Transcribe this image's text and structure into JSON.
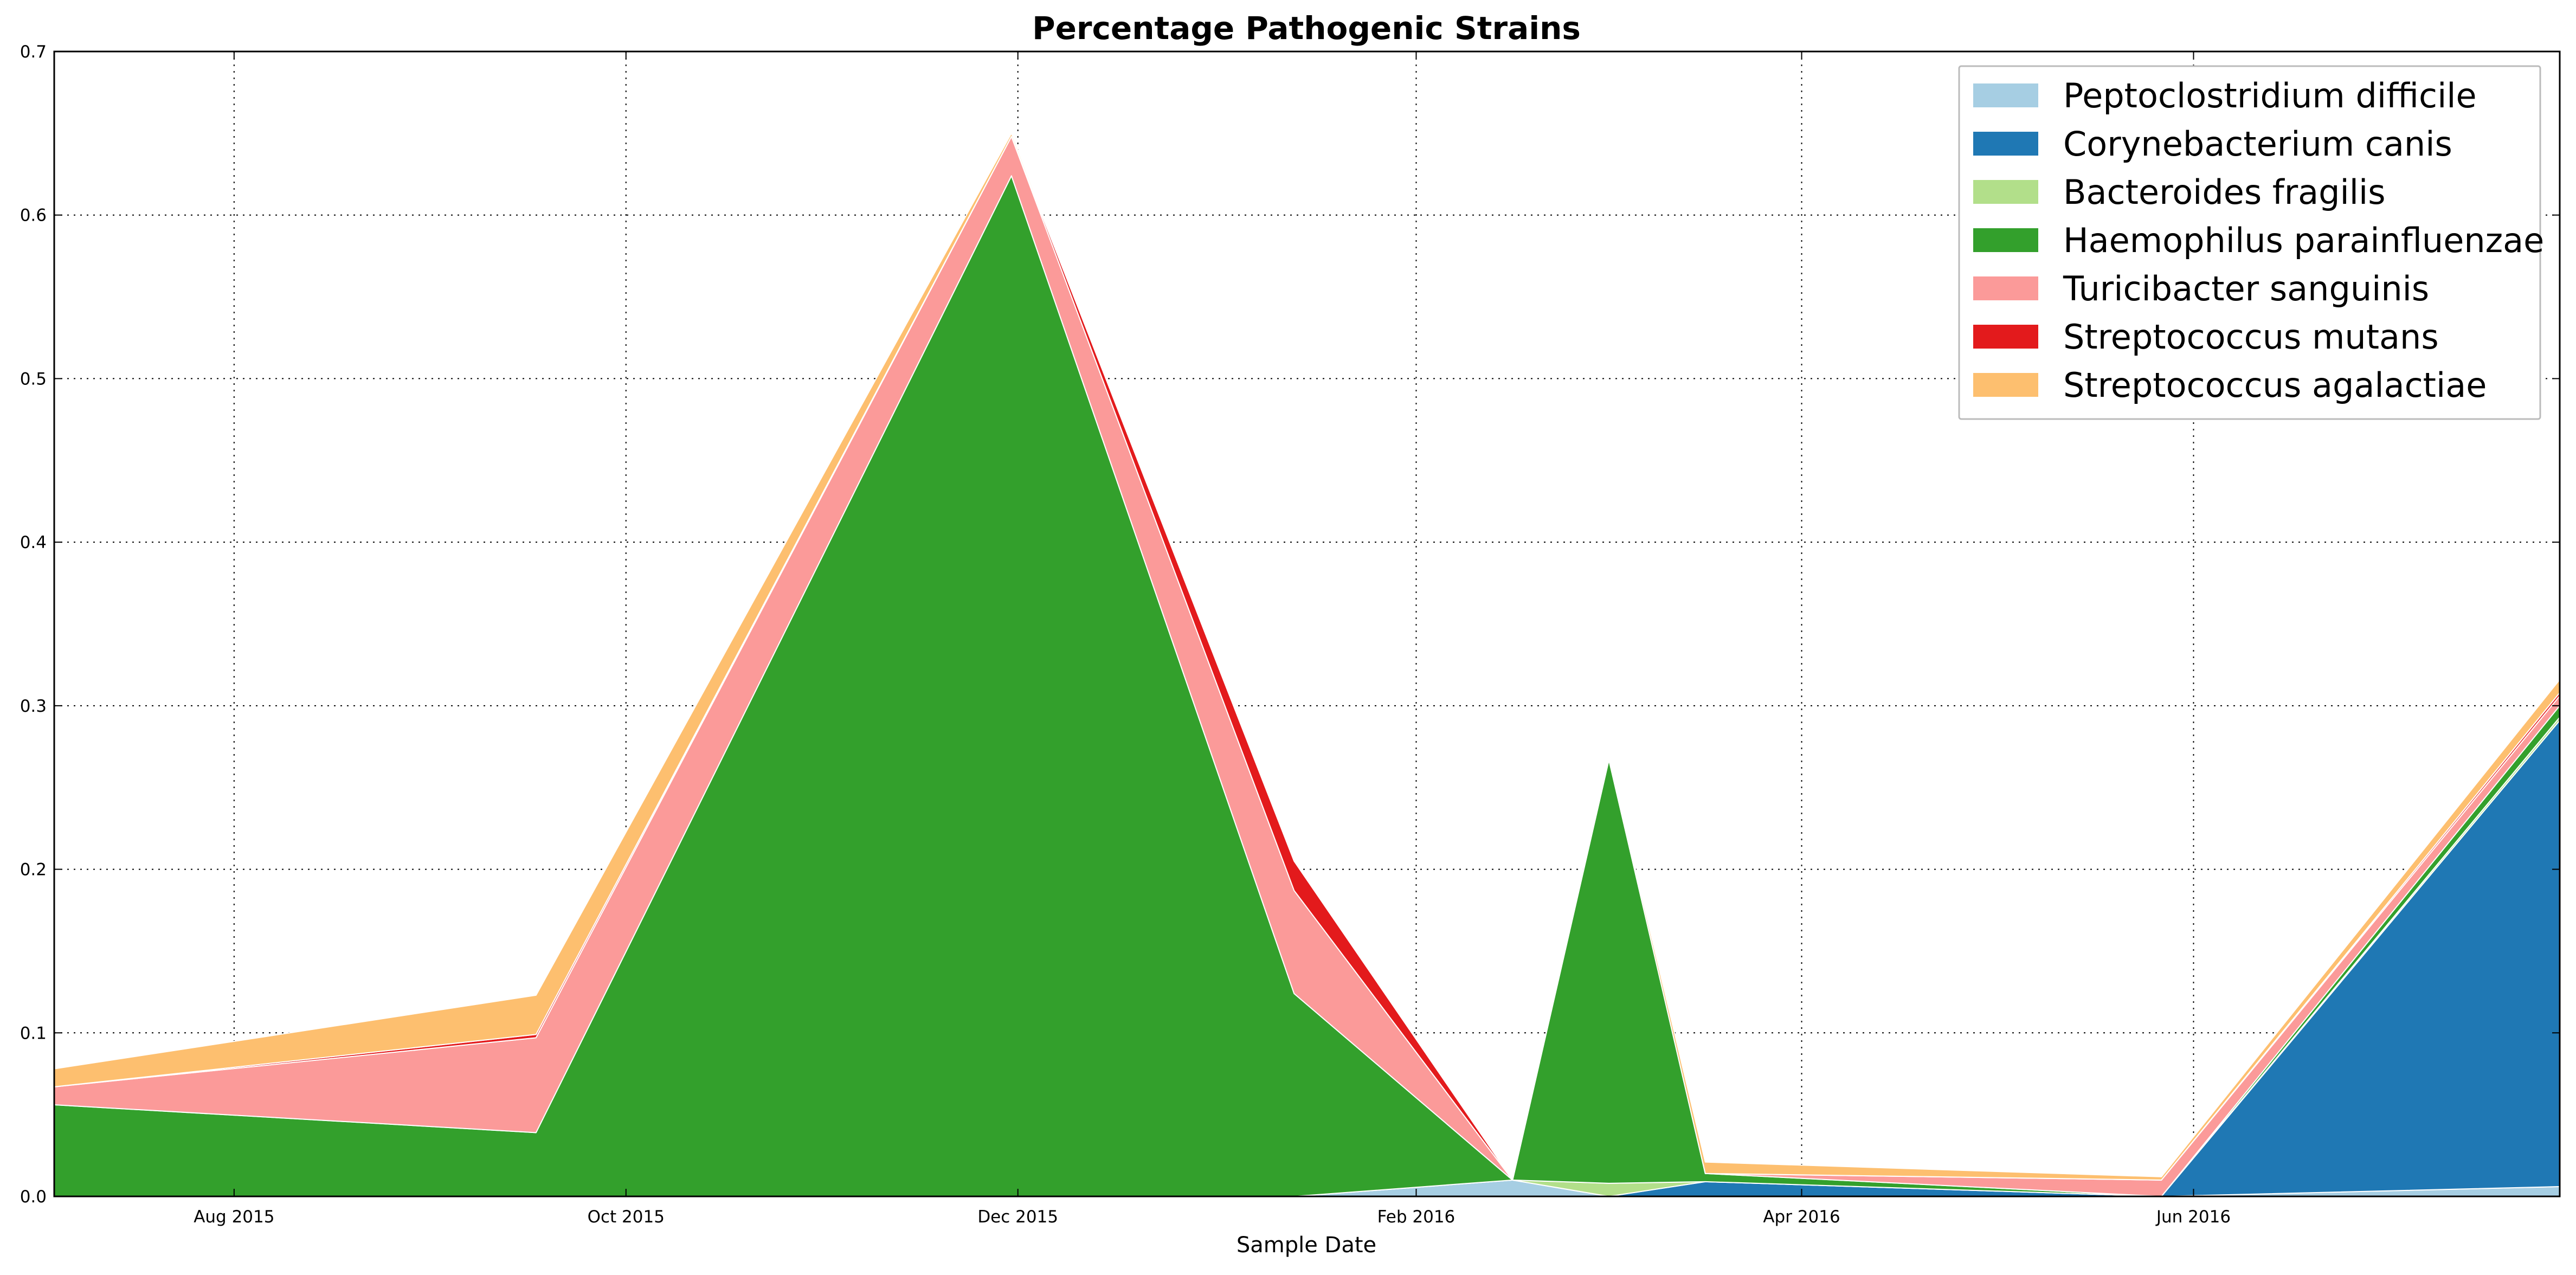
{
  "chart_data": {
    "type": "area",
    "stacked": true,
    "title": "Percentage Pathogenic Strains",
    "xlabel": "Sample Date",
    "ylabel": "",
    "xlim": [
      "2015-07-04",
      "2016-07-28"
    ],
    "ylim": [
      0,
      0.7
    ],
    "grid": true,
    "legend_position": "top-right",
    "x_ticks": [
      {
        "date": "2015-08-01",
        "label": "Aug 2015"
      },
      {
        "date": "2015-10-01",
        "label": "Oct 2015"
      },
      {
        "date": "2015-12-01",
        "label": "Dec 2015"
      },
      {
        "date": "2016-02-01",
        "label": "Feb 2016"
      },
      {
        "date": "2016-04-01",
        "label": "Apr 2016"
      },
      {
        "date": "2016-06-01",
        "label": "Jun 2016"
      }
    ],
    "y_ticks": [
      {
        "value": 0.0,
        "label": "0.0"
      },
      {
        "value": 0.1,
        "label": "0.1"
      },
      {
        "value": 0.2,
        "label": "0.2"
      },
      {
        "value": 0.3,
        "label": "0.3"
      },
      {
        "value": 0.4,
        "label": "0.4"
      },
      {
        "value": 0.5,
        "label": "0.5"
      },
      {
        "value": 0.6,
        "label": "0.6"
      },
      {
        "value": 0.7,
        "label": "0.7"
      }
    ],
    "x": [
      "2015-07-04",
      "2015-09-17",
      "2015-11-30",
      "2016-01-13",
      "2016-02-16",
      "2016-03-02",
      "2016-03-17",
      "2016-05-27",
      "2016-07-28"
    ],
    "series": [
      {
        "name": "Peptoclostridium difficile",
        "color": "#a6cee3",
        "values": [
          0.0,
          0.0,
          0.0,
          0.0,
          0.01,
          0.0,
          0.0,
          0.0,
          0.006
        ]
      },
      {
        "name": "Corynebacterium canis",
        "color": "#1f78b4",
        "values": [
          0.0,
          0.0,
          0.0,
          0.0,
          0.0,
          0.0,
          0.009,
          0.0,
          0.285
        ]
      },
      {
        "name": "Bacteroides fragilis",
        "color": "#b2df8a",
        "values": [
          0.0,
          0.0,
          0.0,
          0.0,
          0.0,
          0.008,
          0.0,
          0.0,
          0.002
        ]
      },
      {
        "name": "Haemophilus parainfluenzae",
        "color": "#33a02c",
        "values": [
          0.056,
          0.039,
          0.624,
          0.124,
          0.0,
          0.259,
          0.005,
          0.0,
          0.007
        ]
      },
      {
        "name": "Turicibacter sanguinis",
        "color": "#fb9a99",
        "values": [
          0.011,
          0.058,
          0.024,
          0.063,
          0.0,
          0.0,
          0.0,
          0.01,
          0.006
        ]
      },
      {
        "name": "Streptococcus mutans",
        "color": "#e31a1c",
        "values": [
          0.0,
          0.002,
          0.0,
          0.018,
          0.0,
          0.0,
          0.0,
          0.0,
          0.002
        ]
      },
      {
        "name": "Streptococcus agalactiae",
        "color": "#fdbf6f",
        "values": [
          0.011,
          0.024,
          0.002,
          0.0,
          0.0,
          0.001,
          0.007,
          0.002,
          0.008
        ]
      }
    ]
  }
}
